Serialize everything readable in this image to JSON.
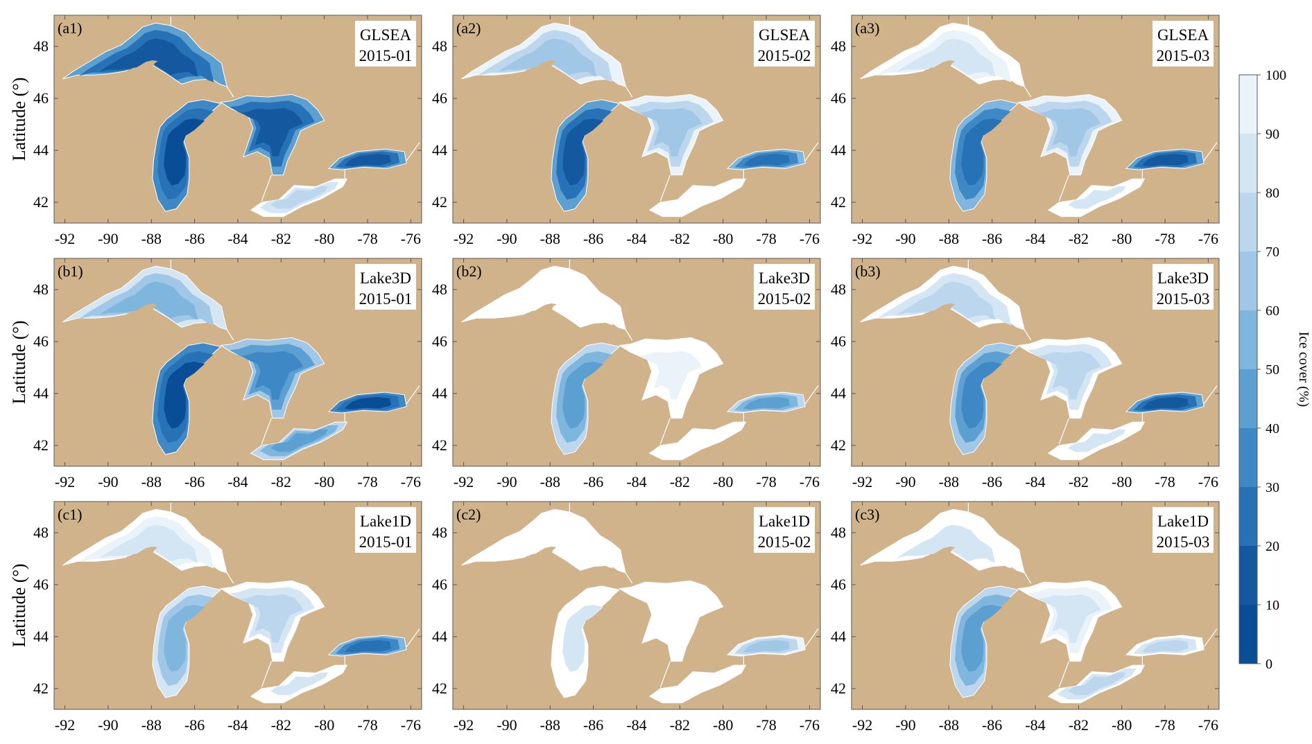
{
  "axes": {
    "ylabel": "Latitude (°)",
    "x_ticks": [
      "-92",
      "-90",
      "-88",
      "-86",
      "-84",
      "-82",
      "-80",
      "-78",
      "-76"
    ],
    "y_ticks": [
      "48",
      "46",
      "44",
      "42"
    ],
    "x_range": [
      -92.5,
      -75.5
    ],
    "y_range": [
      41.2,
      49.2
    ]
  },
  "panels": [
    {
      "tag": "(a1)",
      "source": "GLSEA",
      "date": "2015-01",
      "levels": {
        "superior": 10,
        "michigan": 8,
        "huron": 10,
        "erie": 70,
        "ontario": 10
      }
    },
    {
      "tag": "(a2)",
      "source": "GLSEA",
      "date": "2015-02",
      "levels": {
        "superior": 65,
        "michigan": 15,
        "huron": 60,
        "erie": 99,
        "ontario": 20
      }
    },
    {
      "tag": "(a3)",
      "source": "GLSEA",
      "date": "2015-03",
      "levels": {
        "superior": 80,
        "michigan": 20,
        "huron": 60,
        "erie": 88,
        "ontario": 15
      }
    },
    {
      "tag": "(b1)",
      "source": "Lake3D",
      "date": "2015-01",
      "levels": {
        "superior": 50,
        "michigan": 8,
        "huron": 30,
        "erie": 40,
        "ontario": 8
      }
    },
    {
      "tag": "(b2)",
      "source": "Lake3D",
      "date": "2015-02",
      "levels": {
        "superior": 99,
        "michigan": 45,
        "huron": 90,
        "erie": 99,
        "ontario": 40
      }
    },
    {
      "tag": "(b3)",
      "source": "Lake3D",
      "date": "2015-03",
      "levels": {
        "superior": 75,
        "michigan": 30,
        "huron": 70,
        "erie": 85,
        "ontario": 15
      }
    },
    {
      "tag": "(c1)",
      "source": "Lake1D",
      "date": "2015-01",
      "levels": {
        "superior": 80,
        "michigan": 50,
        "huron": 75,
        "erie": 85,
        "ontario": 20
      }
    },
    {
      "tag": "(c2)",
      "source": "Lake1D",
      "date": "2015-02",
      "levels": {
        "superior": 97,
        "michigan": 85,
        "huron": 98,
        "erie": 99,
        "ontario": 65
      }
    },
    {
      "tag": "(c3)",
      "source": "Lake1D",
      "date": "2015-03",
      "levels": {
        "superior": 85,
        "michigan": 45,
        "huron": 80,
        "erie": 75,
        "ontario": 70
      }
    }
  ],
  "colorbar": {
    "title": "Ice cover (%)",
    "labels": [
      "100",
      "90",
      "80",
      "70",
      "60",
      "50",
      "40",
      "30",
      "20",
      "10",
      "0"
    ],
    "colors": [
      "#0a4d97",
      "#14599f",
      "#2771b6",
      "#3e88c5",
      "#5c9fd1",
      "#7fb6de",
      "#a0c8e6",
      "#bcd7ed",
      "#d4e6f4",
      "#ebf3fa"
    ]
  },
  "colors": {
    "land": "#d0b28b",
    "axis": "#555555"
  }
}
